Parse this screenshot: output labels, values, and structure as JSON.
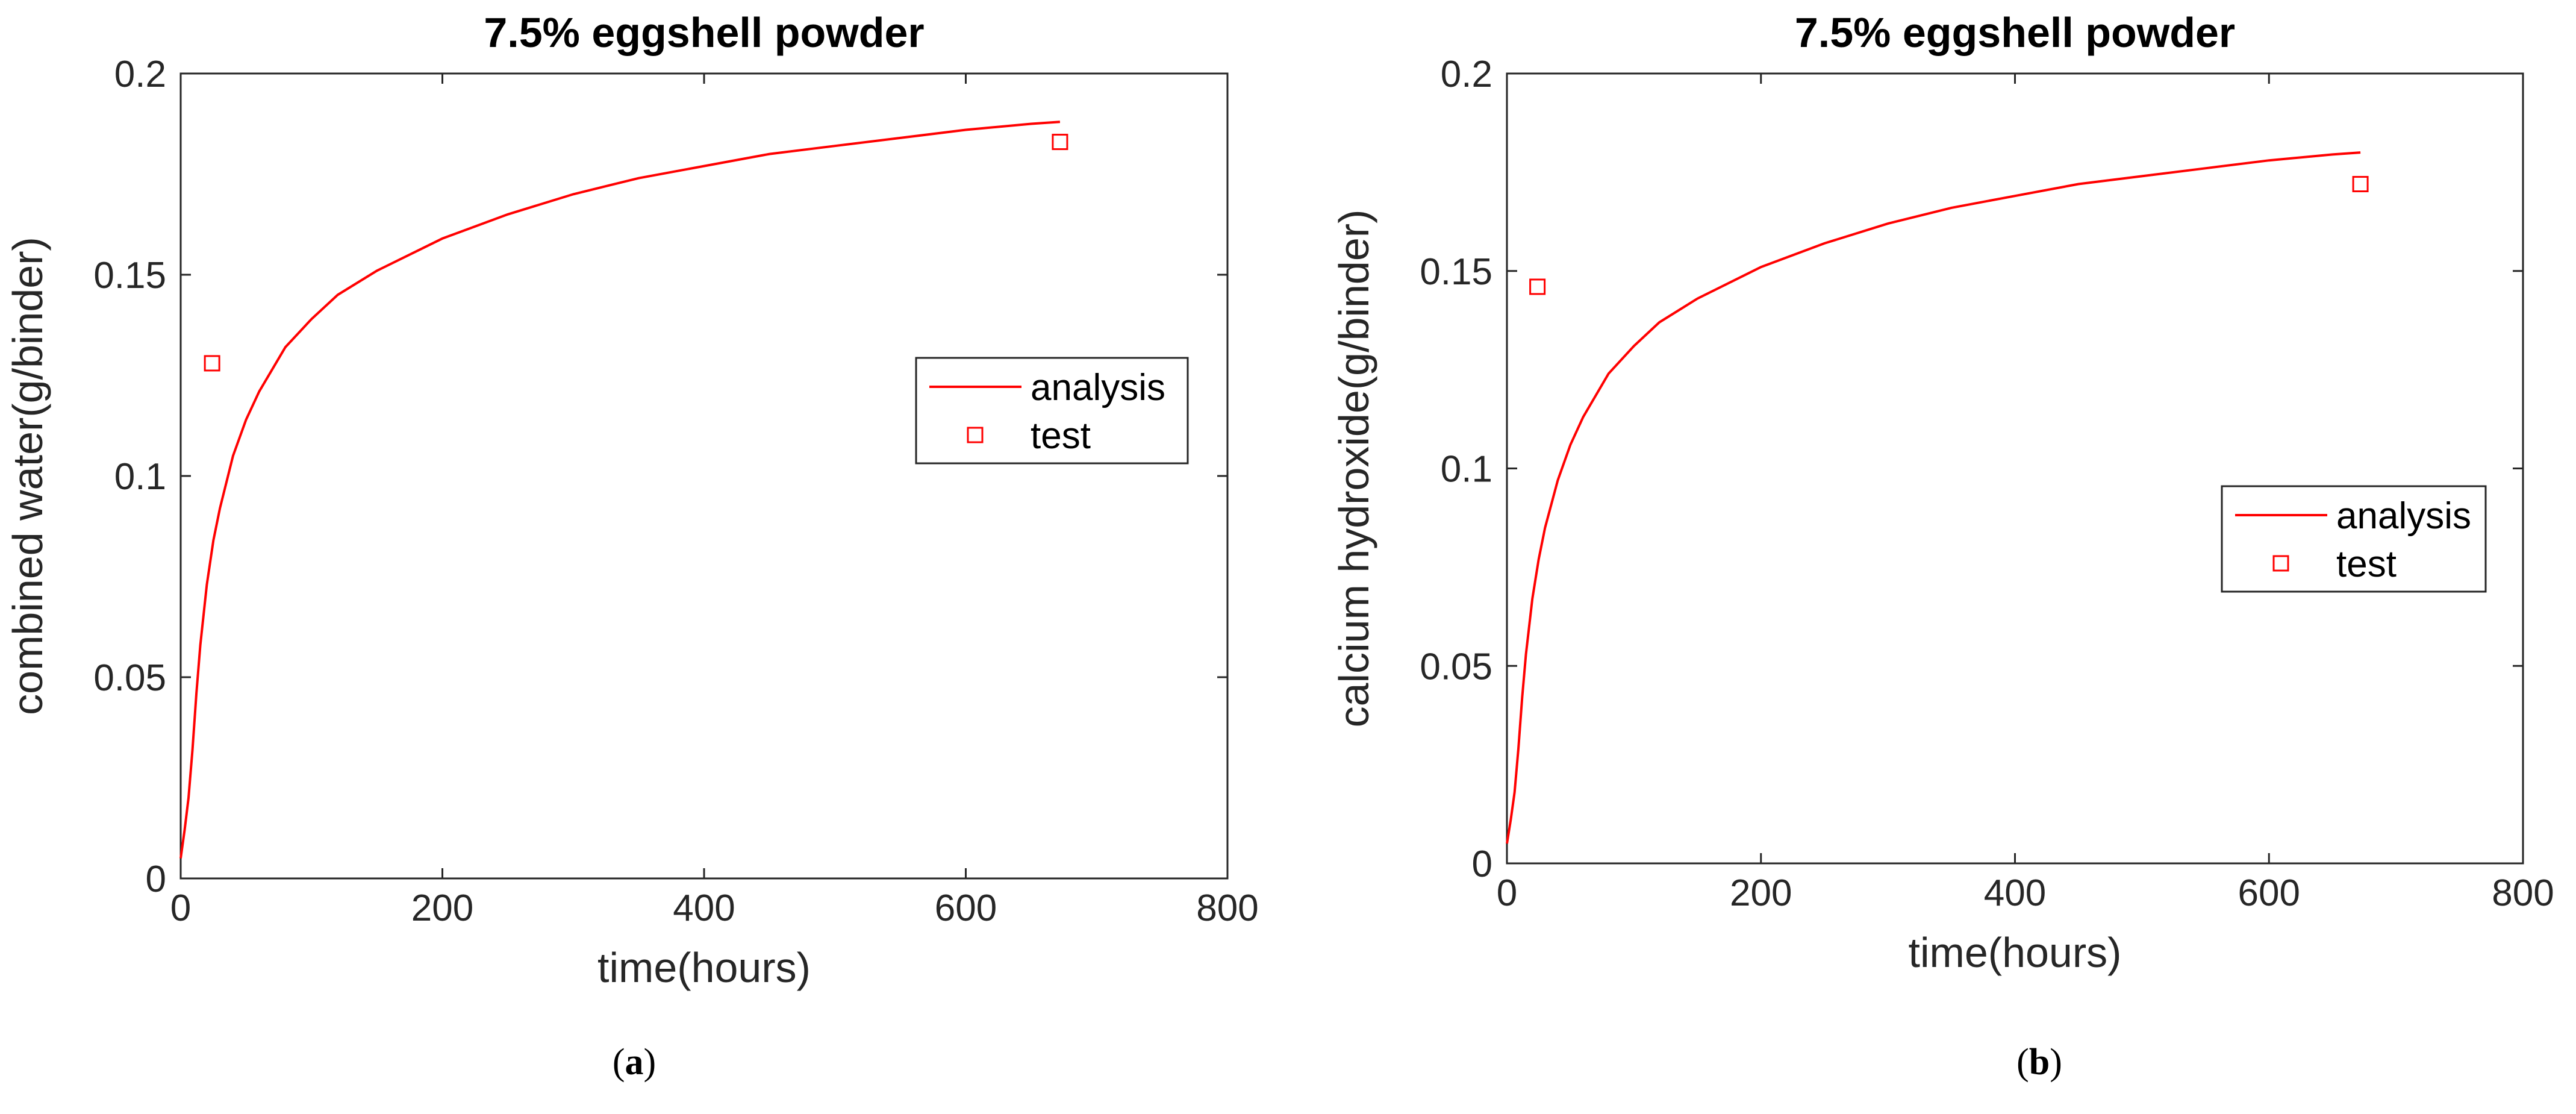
{
  "chart_data": [
    {
      "type": "line",
      "panel_label": "a",
      "title": "7.5% eggshell powder",
      "xlabel": "time(hours)",
      "ylabel": "combined water(g/binder)",
      "xlim": [
        0,
        800
      ],
      "ylim": [
        0,
        0.2
      ],
      "xticks": [
        "0",
        "200",
        "400",
        "600",
        "800"
      ],
      "yticks": [
        "0",
        "0.05",
        "0.1",
        "0.15",
        "0.2"
      ],
      "grid": false,
      "legend": {
        "placement": "right",
        "entries": [
          "analysis",
          "test"
        ]
      },
      "series": [
        {
          "name": "analysis",
          "kind": "line",
          "color": "#ff0000",
          "x": [
            0,
            3,
            6,
            9,
            12,
            15,
            20,
            25,
            30,
            40,
            50,
            60,
            80,
            100,
            120,
            150,
            200,
            250,
            300,
            350,
            400,
            450,
            500,
            550,
            600,
            650,
            672
          ],
          "y": [
            0.005,
            0.012,
            0.02,
            0.032,
            0.046,
            0.058,
            0.073,
            0.084,
            0.092,
            0.105,
            0.114,
            0.121,
            0.132,
            0.139,
            0.145,
            0.151,
            0.159,
            0.165,
            0.17,
            0.174,
            0.177,
            0.18,
            0.182,
            0.184,
            0.186,
            0.1875,
            0.188
          ]
        },
        {
          "name": "test",
          "kind": "scatter",
          "marker": "square",
          "color": "#ff0000",
          "x": [
            24,
            672
          ],
          "y": [
            0.128,
            0.183
          ]
        }
      ]
    },
    {
      "type": "line",
      "panel_label": "b",
      "title": "7.5% eggshell powder",
      "xlabel": "time(hours)",
      "ylabel": "calcium hydroxide(g/binder)",
      "xlim": [
        0,
        800
      ],
      "ylim": [
        0,
        0.2
      ],
      "xticks": [
        "0",
        "200",
        "400",
        "600",
        "800"
      ],
      "yticks": [
        "0",
        "0.05",
        "0.1",
        "0.15",
        "0.2"
      ],
      "grid": false,
      "legend": {
        "placement": "right",
        "entries": [
          "analysis",
          "test"
        ]
      },
      "series": [
        {
          "name": "analysis",
          "kind": "line",
          "color": "#ff0000",
          "x": [
            0,
            3,
            6,
            9,
            12,
            15,
            20,
            25,
            30,
            40,
            50,
            60,
            80,
            100,
            120,
            150,
            200,
            250,
            300,
            350,
            400,
            450,
            500,
            550,
            600,
            650,
            672
          ],
          "y": [
            0.005,
            0.011,
            0.018,
            0.029,
            0.042,
            0.053,
            0.067,
            0.077,
            0.085,
            0.097,
            0.106,
            0.113,
            0.124,
            0.131,
            0.137,
            0.143,
            0.151,
            0.157,
            0.162,
            0.166,
            0.169,
            0.172,
            0.174,
            0.176,
            0.178,
            0.1795,
            0.18
          ]
        },
        {
          "name": "test",
          "kind": "scatter",
          "marker": "square",
          "color": "#ff0000",
          "x": [
            24,
            672
          ],
          "y": [
            0.146,
            0.172
          ]
        }
      ]
    }
  ]
}
